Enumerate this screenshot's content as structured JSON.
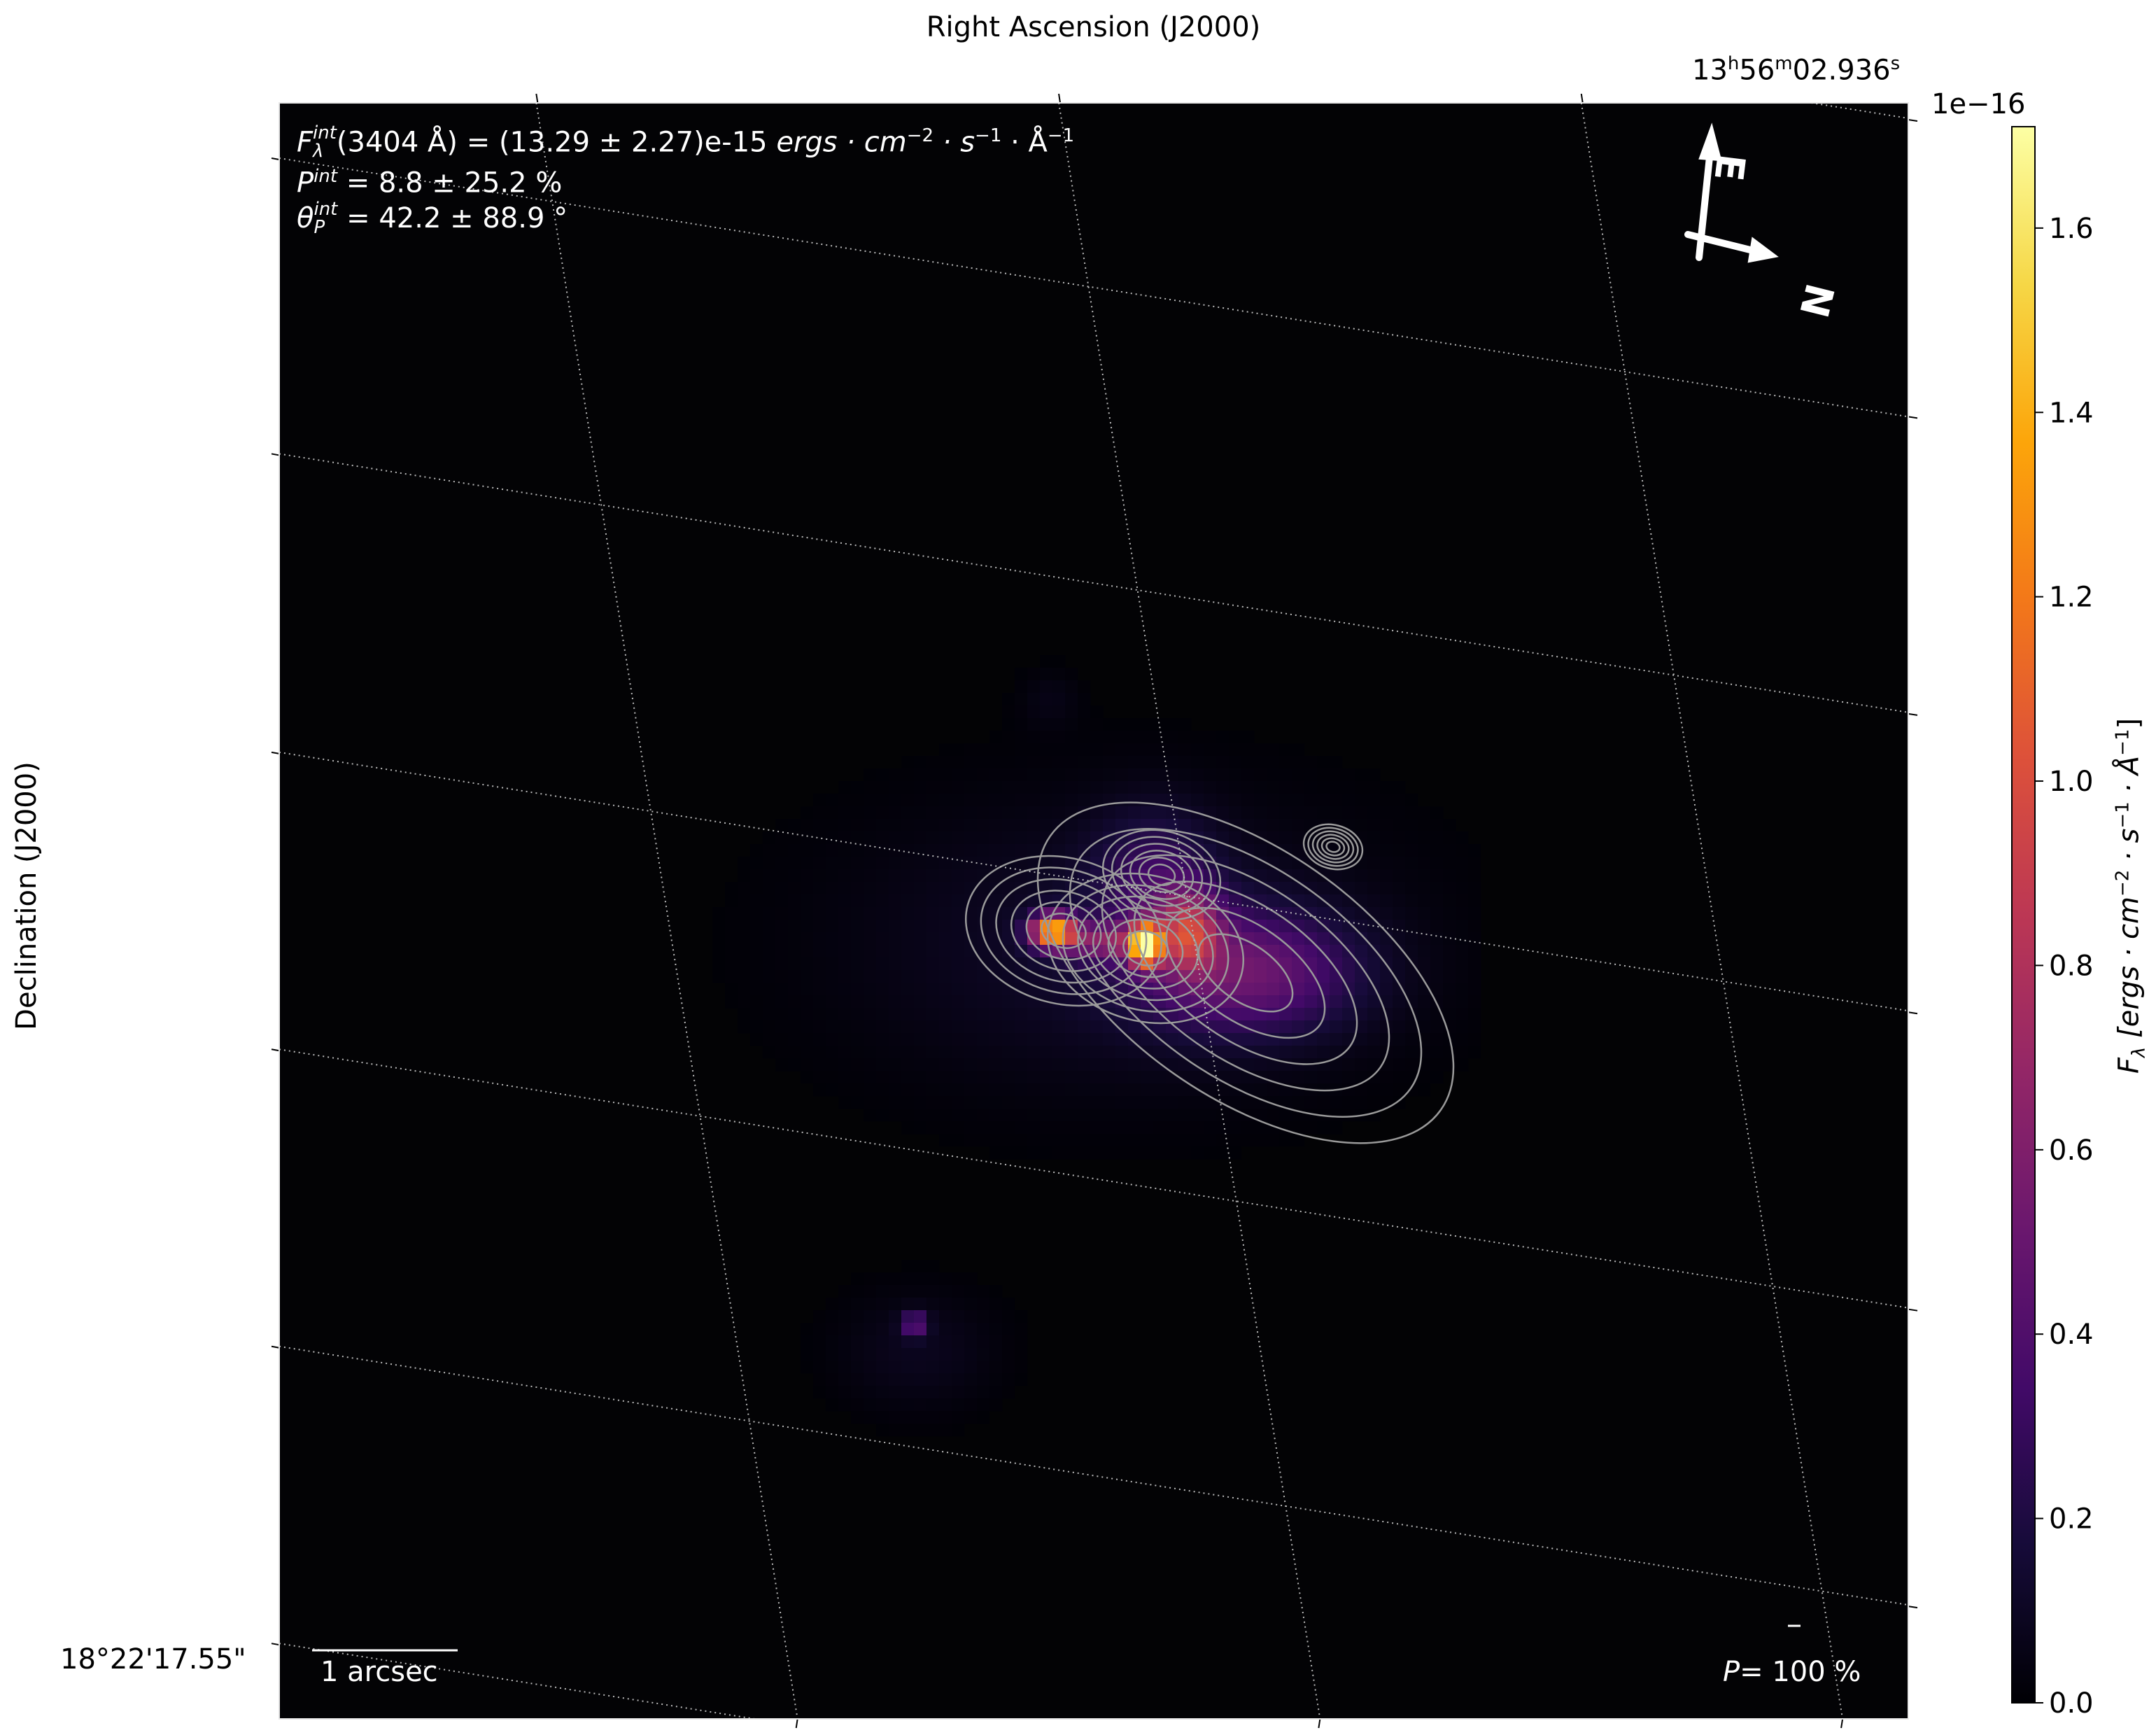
{
  "chart_data": {
    "type": "heatmap",
    "xlabel": "Right Ascension (J2000)",
    "ylabel": "Declination (J2000)",
    "x_tick_label": {
      "h": "13",
      "m": "56",
      "s": "02.936"
    },
    "y_tick_label": "18°22'17.55\"",
    "colormap": "inferno",
    "colorbar": {
      "label": "F_λ [ergs · cm^-2 · s^-1 · Å^-1]",
      "label_parts": {
        "f": "F",
        "sub": "λ",
        "unit": "[ergs · cm",
        "e1": "−2",
        "s": " · s",
        "e2": "−1",
        "a": " · Å",
        "e3": "−1",
        "close": "]"
      },
      "offset_text": "1e−16",
      "range": [
        0.0,
        1.71
      ],
      "ticks": [
        "0.0",
        "0.2",
        "0.4",
        "0.6",
        "0.8",
        "1.0",
        "1.2",
        "1.4",
        "1.6"
      ]
    },
    "grid": true,
    "contours": true,
    "contour_color": "#999999"
  },
  "annotations": {
    "flux": {
      "f": "F",
      "sup": "int",
      "sub": "λ",
      "rest": "(3404 Å) = (13.29 ± 2.27)e-15 ",
      "unit": "ergs · cm",
      "e1": "−2",
      "s": " · s",
      "e2": "−1",
      "a": " · Å",
      "e3": "−1"
    },
    "pol": {
      "p": "P",
      "sup": "int",
      "rest": " = 8.8 ± 25.2 %"
    },
    "angle": {
      "t": "θ",
      "sup": "int",
      "sub": "P",
      "rest": " = 42.2 ± 88.9 °"
    },
    "scale_bar": "1 arcsec",
    "pol_scale": {
      "p": "P",
      "rest": "= 100 %"
    },
    "compass": {
      "east": "E",
      "north": "N"
    }
  }
}
